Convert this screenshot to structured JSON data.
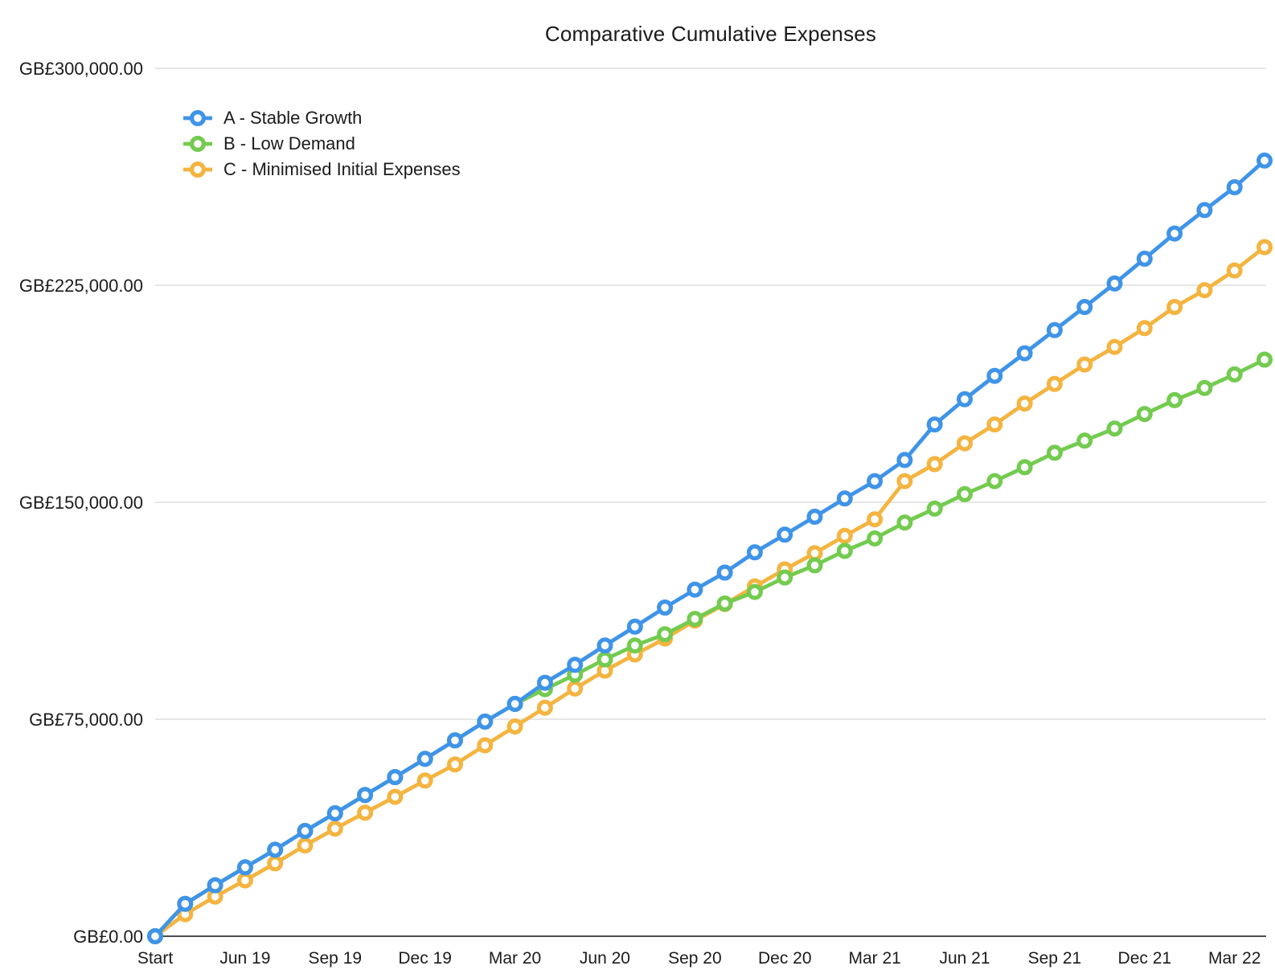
{
  "chart_data": {
    "type": "line",
    "title": "Comparative Cumulative Expenses",
    "currency_prefix": "GB£",
    "n_points": 38,
    "x_tick_labels": [
      "Start",
      "Jun 19",
      "Sep 19",
      "Dec 19",
      "Mar 20",
      "Jun 20",
      "Sep 20",
      "Dec 20",
      "Mar 21",
      "Jun 21",
      "Sep 21",
      "Dec 21",
      "Mar 22"
    ],
    "x_tick_indices": [
      0,
      3,
      6,
      9,
      12,
      15,
      18,
      21,
      24,
      27,
      30,
      33,
      36
    ],
    "ylim": [
      0,
      300000
    ],
    "y_ticks": [
      0,
      75000,
      150000,
      225000,
      300000
    ],
    "y_tick_labels": [
      "GB£0.00",
      "GB£75,000.00",
      "GB£150,000.00",
      "GB£225,000.00",
      "GB£300,000.00"
    ],
    "grid": "horizontal",
    "legend_position": "top-left-inside",
    "marker": "open-circle",
    "colors": {
      "grid": "#d8d8d8",
      "axis": "#4c4c4c",
      "text": "#1b1b1b",
      "background": "#ffffff"
    },
    "series": [
      {
        "id": "a",
        "name": "A - Stable Growth",
        "color": "#3f94e8",
        "values": [
          0,
          11200,
          17600,
          23800,
          29900,
          36400,
          42500,
          48800,
          55000,
          61300,
          67700,
          74200,
          80300,
          87600,
          93800,
          100500,
          107000,
          113600,
          119800,
          125700,
          132700,
          138800,
          145000,
          151300,
          157300,
          164600,
          176900,
          185600,
          193700,
          201500,
          209500,
          217500,
          225600,
          234200,
          242900,
          251000,
          258900,
          268100
        ]
      },
      {
        "id": "b",
        "name": "B - Low Demand",
        "color": "#73cb4f",
        "values": [
          0,
          11200,
          17600,
          23800,
          29900,
          36400,
          42500,
          48800,
          55000,
          61300,
          67700,
          74200,
          80300,
          85400,
          90400,
          95700,
          100500,
          104400,
          109700,
          115000,
          119000,
          124000,
          128200,
          133200,
          137500,
          143000,
          147800,
          152800,
          157300,
          162100,
          167100,
          171300,
          175500,
          180500,
          185300,
          189500,
          194200,
          199300
        ]
      },
      {
        "id": "c",
        "name": "C - Minimised Initial Expenses",
        "color": "#f4b440",
        "values": [
          0,
          7600,
          13700,
          19300,
          25200,
          31400,
          37200,
          42700,
          48200,
          53800,
          59400,
          66000,
          72500,
          79000,
          85600,
          91800,
          97400,
          102900,
          109100,
          114800,
          120900,
          126800,
          132400,
          138400,
          144100,
          157300,
          163200,
          170400,
          176900,
          184100,
          190900,
          197600,
          203700,
          210200,
          217500,
          223300,
          230100,
          238200
        ]
      }
    ]
  }
}
